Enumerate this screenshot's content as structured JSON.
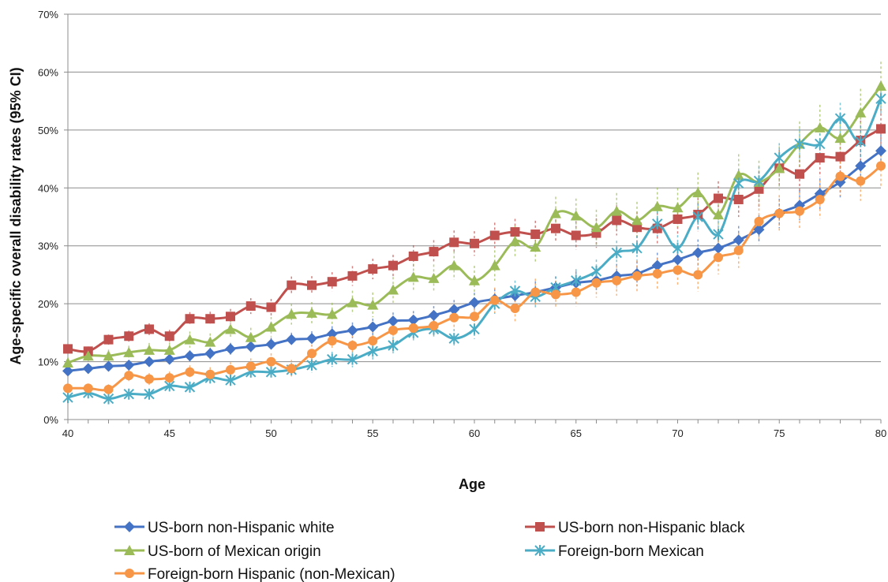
{
  "chart_data": {
    "type": "line",
    "title": "",
    "xlabel": "Age",
    "ylabel": "Age-specific overall disability rates (95% CI)",
    "xlim": [
      40,
      80
    ],
    "ylim": [
      0,
      0.7
    ],
    "x_ticks": [
      40,
      45,
      50,
      55,
      60,
      65,
      70,
      75,
      80
    ],
    "x_tick_labels": [
      "40",
      "45",
      "50",
      "55",
      "60",
      "65",
      "70",
      "75",
      "80"
    ],
    "y_ticks": [
      0,
      0.1,
      0.2,
      0.3,
      0.4,
      0.5,
      0.6,
      0.7
    ],
    "y_tick_labels": [
      "0%",
      "10%",
      "20%",
      "30%",
      "40%",
      "50%",
      "60%",
      "70%"
    ],
    "grid": "horizontal",
    "legend_position": "bottom",
    "x": [
      40,
      41,
      42,
      43,
      44,
      45,
      46,
      47,
      48,
      49,
      50,
      51,
      52,
      53,
      54,
      55,
      56,
      57,
      58,
      59,
      60,
      61,
      62,
      63,
      64,
      65,
      66,
      67,
      68,
      69,
      70,
      71,
      72,
      73,
      74,
      75,
      76,
      77,
      78,
      79,
      80
    ],
    "series": [
      {
        "name": "US-born non-Hispanic white",
        "color": "#4472C4",
        "marker": "diamond",
        "values": [
          0.084,
          0.088,
          0.092,
          0.094,
          0.1,
          0.104,
          0.11,
          0.114,
          0.122,
          0.126,
          0.13,
          0.138,
          0.14,
          0.148,
          0.154,
          0.16,
          0.17,
          0.172,
          0.18,
          0.19,
          0.202,
          0.208,
          0.214,
          0.22,
          0.228,
          0.236,
          0.24,
          0.248,
          0.252,
          0.266,
          0.276,
          0.288,
          0.296,
          0.31,
          0.328,
          0.356,
          0.37,
          0.39,
          0.41,
          0.438,
          0.464
        ]
      },
      {
        "name": "US-born non-Hispanic black",
        "color": "#C0504D",
        "marker": "square",
        "values": [
          0.122,
          0.118,
          0.138,
          0.144,
          0.156,
          0.144,
          0.174,
          0.174,
          0.178,
          0.196,
          0.194,
          0.232,
          0.232,
          0.238,
          0.248,
          0.26,
          0.266,
          0.282,
          0.29,
          0.306,
          0.304,
          0.318,
          0.324,
          0.32,
          0.33,
          0.318,
          0.322,
          0.344,
          0.332,
          0.33,
          0.346,
          0.354,
          0.382,
          0.38,
          0.398,
          0.434,
          0.424,
          0.452,
          0.454,
          0.482,
          0.502
        ]
      },
      {
        "name": "US-born of Mexican origin",
        "color": "#9BBB59",
        "marker": "triangle",
        "values": [
          0.098,
          0.11,
          0.11,
          0.116,
          0.12,
          0.12,
          0.138,
          0.134,
          0.156,
          0.142,
          0.16,
          0.182,
          0.184,
          0.182,
          0.202,
          0.198,
          0.224,
          0.246,
          0.244,
          0.266,
          0.24,
          0.266,
          0.308,
          0.298,
          0.356,
          0.352,
          0.332,
          0.36,
          0.344,
          0.368,
          0.366,
          0.392,
          0.354,
          0.422,
          0.41,
          0.434,
          0.476,
          0.504,
          0.486,
          0.53,
          0.576
        ]
      },
      {
        "name": "Foreign-born Mexican",
        "color": "#4BACC6",
        "marker": "x",
        "values": [
          0.038,
          0.046,
          0.036,
          0.044,
          0.044,
          0.058,
          0.056,
          0.072,
          0.068,
          0.082,
          0.082,
          0.086,
          0.094,
          0.104,
          0.104,
          0.118,
          0.128,
          0.15,
          0.156,
          0.14,
          0.156,
          0.2,
          0.222,
          0.212,
          0.228,
          0.24,
          0.256,
          0.288,
          0.296,
          0.338,
          0.296,
          0.35,
          0.32,
          0.408,
          0.412,
          0.452,
          0.476,
          0.476,
          0.52,
          0.48,
          0.554
        ]
      },
      {
        "name": "Foreign-born Hispanic (non-Mexican)",
        "color": "#F79646",
        "marker": "circle",
        "values": [
          0.054,
          0.054,
          0.052,
          0.076,
          0.07,
          0.072,
          0.082,
          0.078,
          0.086,
          0.092,
          0.1,
          0.088,
          0.114,
          0.136,
          0.128,
          0.136,
          0.154,
          0.158,
          0.162,
          0.176,
          0.178,
          0.206,
          0.192,
          0.22,
          0.216,
          0.22,
          0.236,
          0.24,
          0.248,
          0.252,
          0.258,
          0.25,
          0.28,
          0.292,
          0.342,
          0.356,
          0.36,
          0.38,
          0.42,
          0.412,
          0.438
        ]
      }
    ]
  }
}
